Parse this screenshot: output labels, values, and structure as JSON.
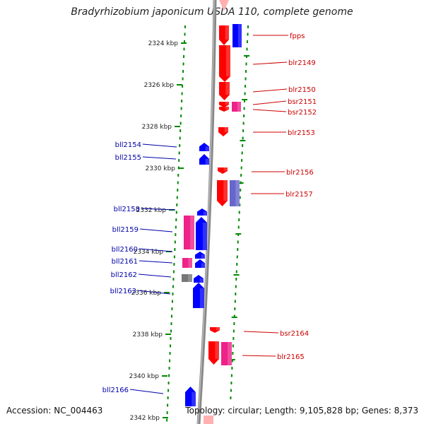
{
  "title": "Bradyrhizobium japonicum USDA 110, complete genome",
  "footer": {
    "accession": "Accession: NC_004463",
    "summary": "Topology: circular; Length: 9,105,828 bp; Genes: 8,373"
  },
  "colors": {
    "forward": "#ff0000",
    "reverse": "#0000ff",
    "pink": "#ee2288",
    "slate": "#6666cc",
    "gray": "#777777",
    "ruler": "#008800",
    "backbone": "#888888"
  },
  "scale": {
    "ticks": [
      {
        "label": "2324 kbp"
      },
      {
        "label": "2326 kbp"
      },
      {
        "label": "2328 kbp"
      },
      {
        "label": "2330 kbp"
      },
      {
        "label": "2332 kbp"
      },
      {
        "label": "2334 kbp"
      },
      {
        "label": "2336 kbp"
      },
      {
        "label": "2338 kbp"
      },
      {
        "label": "2340 kbp"
      },
      {
        "label": "2342 kbp"
      }
    ]
  },
  "right_genes": [
    {
      "label": "fpps",
      "color": "forward"
    },
    {
      "label": "blr2149",
      "color": "forward"
    },
    {
      "label": "blr2150",
      "color": "forward"
    },
    {
      "label": "bsr2151",
      "color": "forward"
    },
    {
      "label": "bsr2152",
      "color": "pink"
    },
    {
      "label": "blr2153",
      "color": "forward"
    },
    {
      "label": "blr2156",
      "color": "forward"
    },
    {
      "label": "blr2157",
      "color": "forward"
    },
    {
      "label": "bsr2164",
      "color": "forward"
    },
    {
      "label": "blr2165",
      "color": "forward"
    }
  ],
  "left_genes": [
    {
      "label": "bll2154",
      "color": "reverse"
    },
    {
      "label": "bll2155",
      "color": "reverse"
    },
    {
      "label": "bll2158",
      "color": "reverse"
    },
    {
      "label": "bll2159",
      "color": "pink"
    },
    {
      "label": "bll2160",
      "color": "reverse"
    },
    {
      "label": "bll2161",
      "color": "pink"
    },
    {
      "label": "bll2162",
      "color": "gray"
    },
    {
      "label": "bll2163",
      "color": "reverse"
    },
    {
      "label": "bll2166",
      "color": "reverse"
    }
  ]
}
